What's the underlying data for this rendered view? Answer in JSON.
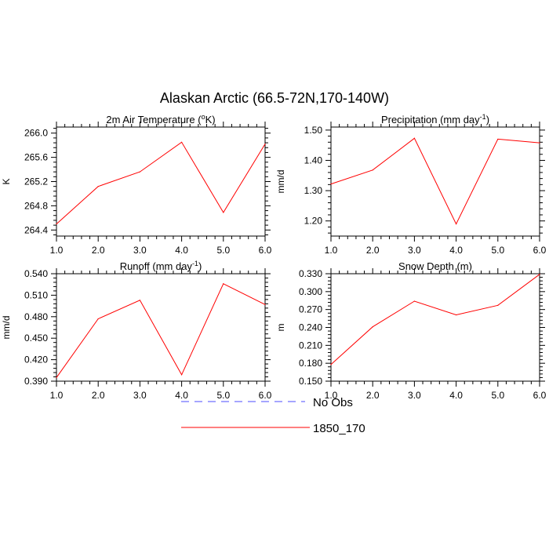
{
  "figure": {
    "title": "Alaskan Arctic (66.5-72N,170-140W)"
  },
  "legend": [
    {
      "label": "No Obs",
      "color": "#4b4bff",
      "dash": true
    },
    {
      "label": "1850_170",
      "color": "#ff0000",
      "dash": false
    }
  ],
  "chart_data": [
    {
      "type": "line",
      "title_main": "2m Air Temperature (",
      "title_sup": "o",
      "title_end": "K)",
      "ylabel": "K",
      "xlim": [
        1.0,
        6.0
      ],
      "ylim": [
        264.3,
        266.1
      ],
      "xticks": [
        "1.0",
        "2.0",
        "3.0",
        "4.0",
        "5.0",
        "6.0"
      ],
      "yticks": [
        264.4,
        264.8,
        265.2,
        265.6,
        266.0
      ],
      "ytick_labels": [
        "264.4",
        "264.8",
        "265.2",
        "265.6",
        "266.0"
      ],
      "x": [
        1,
        2,
        3,
        4,
        5,
        6
      ],
      "series": [
        {
          "name": "1850_170",
          "color": "#ff0000",
          "values": [
            264.5,
            265.12,
            265.36,
            265.85,
            264.69,
            265.82
          ]
        }
      ]
    },
    {
      "type": "line",
      "title_main": "Precipitation (mm day",
      "title_sup": "-1",
      "title_end": ")",
      "ylabel": "mm/d",
      "xlim": [
        1.0,
        6.0
      ],
      "ylim": [
        1.15,
        1.51
      ],
      "xticks": [
        "1.0",
        "2.0",
        "3.0",
        "4.0",
        "5.0",
        "6.0"
      ],
      "yticks": [
        1.2,
        1.3,
        1.4,
        1.5
      ],
      "ytick_labels": [
        "1.20",
        "1.30",
        "1.40",
        "1.50"
      ],
      "x": [
        1,
        2,
        3,
        4,
        5,
        6
      ],
      "series": [
        {
          "name": "1850_170",
          "color": "#ff0000",
          "values": [
            1.322,
            1.368,
            1.473,
            1.19,
            1.47,
            1.458
          ]
        }
      ]
    },
    {
      "type": "line",
      "title_main": "Runoff (mm day",
      "title_sup": "-1",
      "title_end": ")",
      "ylabel": "mm/d",
      "xlim": [
        1.0,
        6.0
      ],
      "ylim": [
        0.39,
        0.54
      ],
      "xticks": [
        "1.0",
        "2.0",
        "3.0",
        "4.0",
        "5.0",
        "6.0"
      ],
      "yticks": [
        0.39,
        0.42,
        0.45,
        0.48,
        0.51,
        0.54
      ],
      "ytick_labels": [
        "0.390",
        "0.420",
        "0.450",
        "0.480",
        "0.510",
        "0.540"
      ],
      "x": [
        1,
        2,
        3,
        4,
        5,
        6
      ],
      "series": [
        {
          "name": "1850_170",
          "color": "#ff0000",
          "values": [
            0.395,
            0.477,
            0.503,
            0.399,
            0.526,
            0.497
          ]
        }
      ]
    },
    {
      "type": "line",
      "title_main": "Snow Depth (m)",
      "title_sup": "",
      "title_end": "",
      "ylabel": "m",
      "xlim": [
        1.0,
        6.0
      ],
      "ylim": [
        0.15,
        0.33
      ],
      "xticks": [
        "1.0",
        "2.0",
        "3.0",
        "4.0",
        "5.0",
        "6.0"
      ],
      "yticks": [
        0.15,
        0.18,
        0.21,
        0.24,
        0.27,
        0.3,
        0.33
      ],
      "ytick_labels": [
        "0.150",
        "0.180",
        "0.210",
        "0.240",
        "0.270",
        "0.300",
        "0.330"
      ],
      "x": [
        1,
        2,
        3,
        4,
        5,
        6
      ],
      "series": [
        {
          "name": "1850_170",
          "color": "#ff0000",
          "values": [
            0.178,
            0.241,
            0.284,
            0.261,
            0.277,
            0.329
          ]
        }
      ]
    }
  ]
}
